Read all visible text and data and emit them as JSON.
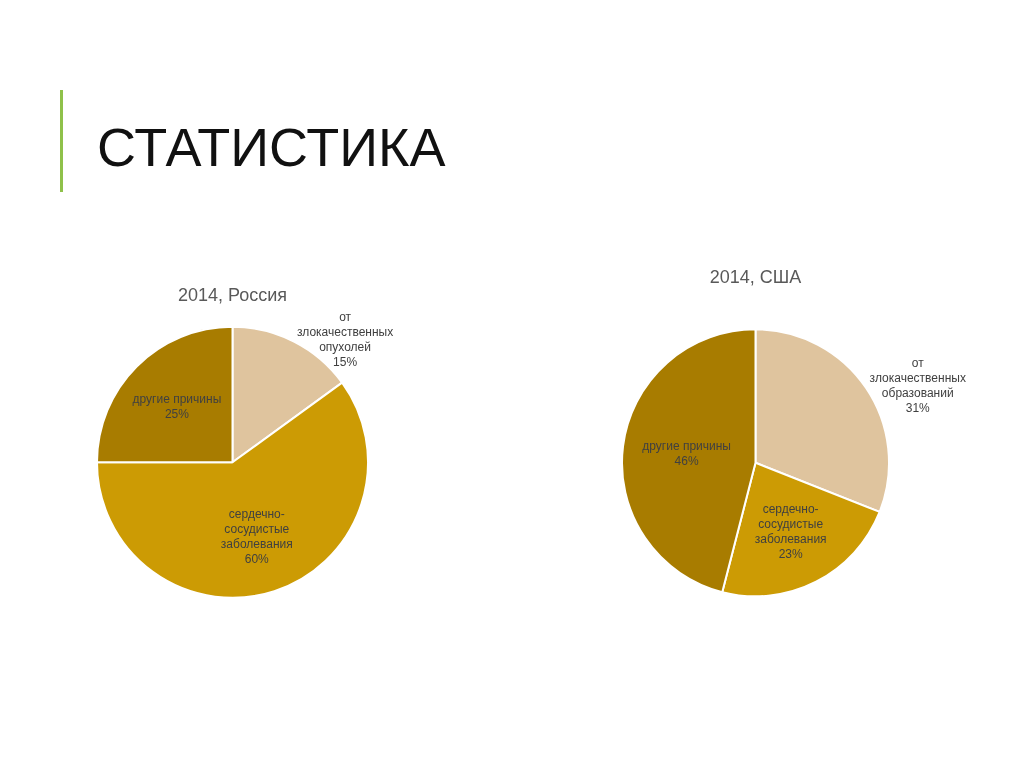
{
  "chart_data": [
    {
      "type": "other",
      "title": "СТАТИСТИКА"
    },
    {
      "type": "pie",
      "title": "2014, Россия",
      "categories": [
        "от злокачественных опухолей",
        "сердечно-сосудистые заболевания",
        "другие причины"
      ],
      "values": [
        15,
        60,
        25
      ],
      "colors": [
        "#dfc49e",
        "#cc9b04",
        "#a87c00"
      ],
      "value_labels": [
        "15%",
        "60%",
        "25%"
      ]
    },
    {
      "type": "pie",
      "title": "2014, США",
      "categories": [
        "от злокачественных образований",
        "сердечно-сосудистые заболевания",
        "другие причины"
      ],
      "values": [
        31,
        23,
        46
      ],
      "colors": [
        "#dfc49e",
        "#cc9b04",
        "#a87c00"
      ],
      "value_labels": [
        "31%",
        "23%",
        "46%"
      ]
    }
  ]
}
